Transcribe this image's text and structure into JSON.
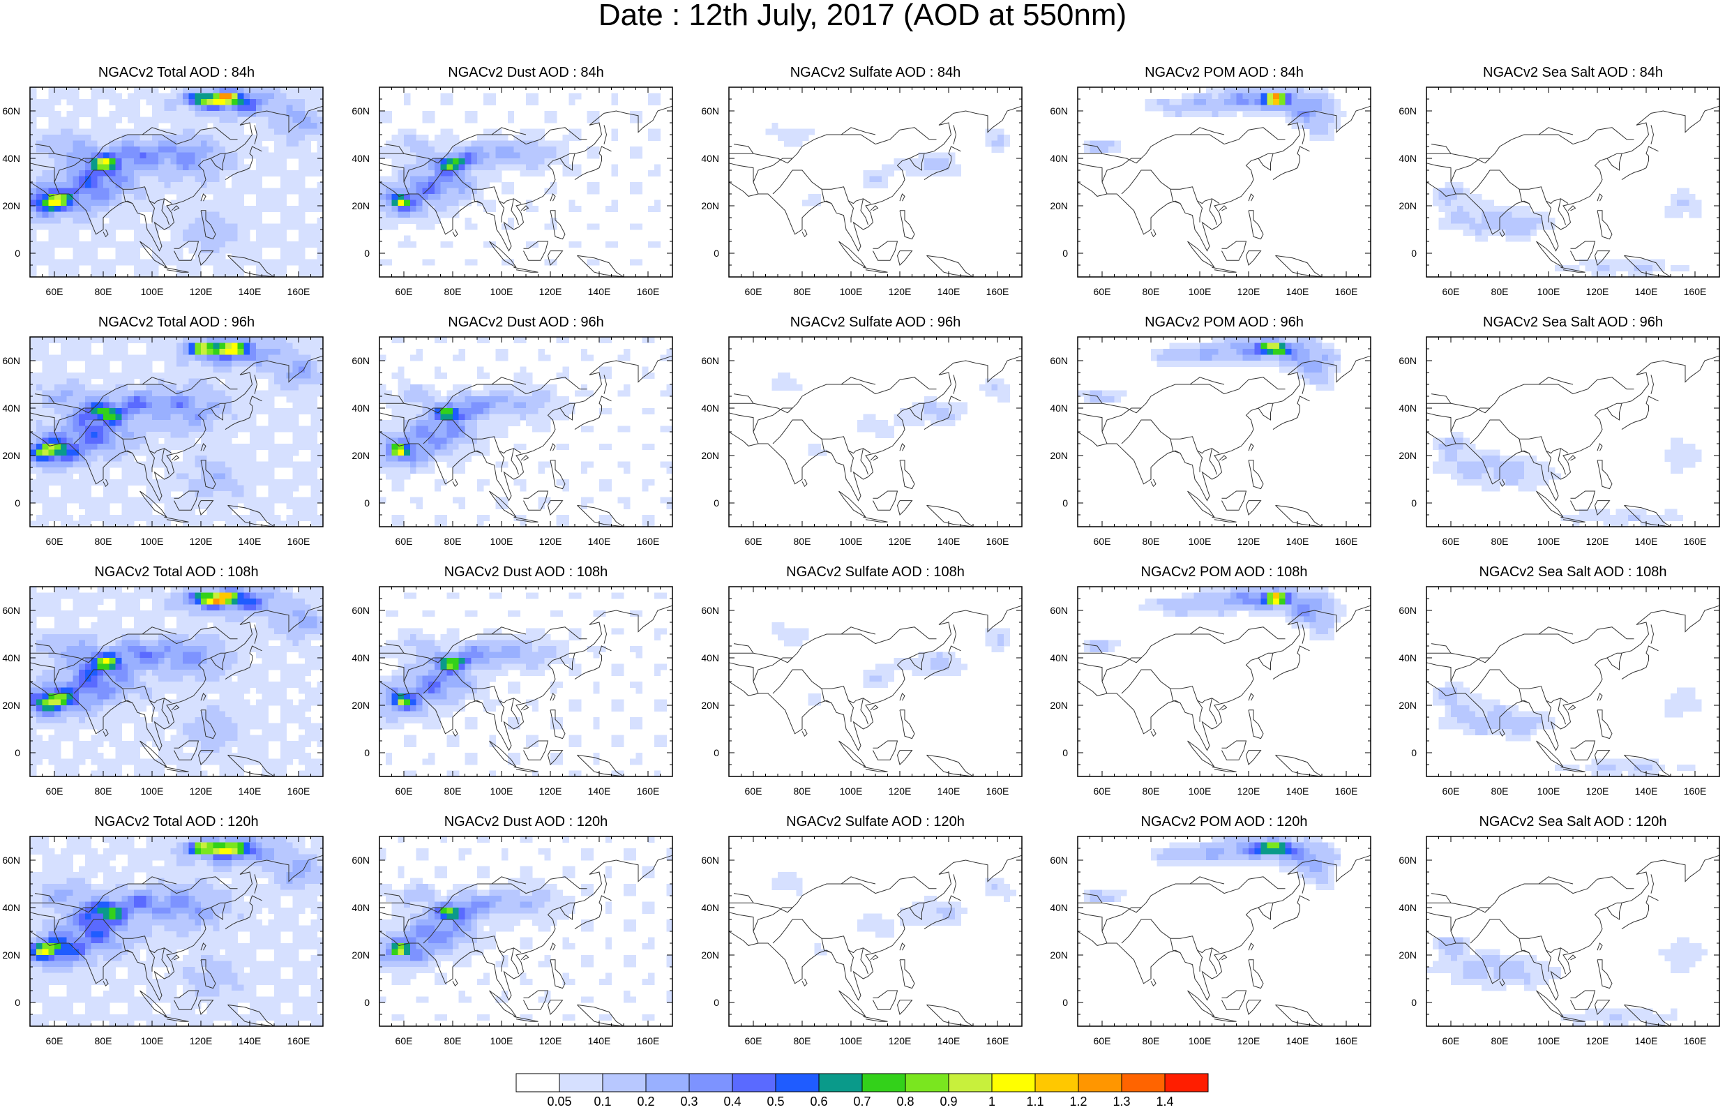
{
  "title": "Date : 12th July, 2017 (AOD at 550nm)",
  "lon_ticks": [
    "60E",
    "80E",
    "100E",
    "120E",
    "140E",
    "160E"
  ],
  "lat_ticks": [
    "60N",
    "40N",
    "20N",
    "0"
  ],
  "species": [
    "total",
    "dust",
    "sulfate",
    "pom",
    "seasalt"
  ],
  "panels": [
    {
      "title": "NGACv2 Total AOD : 84h",
      "species": "total",
      "forecast_hour": 84
    },
    {
      "title": "NGACv2 Dust AOD : 84h",
      "species": "dust",
      "forecast_hour": 84
    },
    {
      "title": "NGACv2 Sulfate AOD : 84h",
      "species": "sulfate",
      "forecast_hour": 84
    },
    {
      "title": "NGACv2 POM AOD : 84h",
      "species": "pom",
      "forecast_hour": 84
    },
    {
      "title": "NGACv2 Sea Salt AOD : 84h",
      "species": "seasalt",
      "forecast_hour": 84
    },
    {
      "title": "NGACv2 Total AOD : 96h",
      "species": "total",
      "forecast_hour": 96
    },
    {
      "title": "NGACv2 Dust AOD : 96h",
      "species": "dust",
      "forecast_hour": 96
    },
    {
      "title": "NGACv2 Sulfate AOD : 96h",
      "species": "sulfate",
      "forecast_hour": 96
    },
    {
      "title": "NGACv2 POM AOD : 96h",
      "species": "pom",
      "forecast_hour": 96
    },
    {
      "title": "NGACv2 Sea Salt AOD : 96h",
      "species": "seasalt",
      "forecast_hour": 96
    },
    {
      "title": "NGACv2 Total AOD : 108h",
      "species": "total",
      "forecast_hour": 108
    },
    {
      "title": "NGACv2 Dust AOD : 108h",
      "species": "dust",
      "forecast_hour": 108
    },
    {
      "title": "NGACv2 Sulfate AOD : 108h",
      "species": "sulfate",
      "forecast_hour": 108
    },
    {
      "title": "NGACv2 POM AOD : 108h",
      "species": "pom",
      "forecast_hour": 108
    },
    {
      "title": "NGACv2 Sea Salt AOD : 108h",
      "species": "seasalt",
      "forecast_hour": 108
    },
    {
      "title": "NGACv2 Total AOD : 120h",
      "species": "total",
      "forecast_hour": 120
    },
    {
      "title": "NGACv2 Dust AOD : 120h",
      "species": "dust",
      "forecast_hour": 120
    },
    {
      "title": "NGACv2 Sulfate AOD : 120h",
      "species": "sulfate",
      "forecast_hour": 120
    },
    {
      "title": "NGACv2 POM AOD : 120h",
      "species": "pom",
      "forecast_hour": 120
    },
    {
      "title": "NGACv2 Sea Salt  AOD : 120h",
      "species": "seasalt",
      "forecast_hour": 120
    }
  ],
  "colorbar": {
    "labels": [
      "0.05",
      "0.1",
      "0.2",
      "0.3",
      "0.4",
      "0.5",
      "0.6",
      "0.7",
      "0.8",
      "0.9",
      "1",
      "1.1",
      "1.2",
      "1.3",
      "1.4"
    ],
    "colors": [
      "#ffffff",
      "#d6e0ff",
      "#b8c8ff",
      "#99b0ff",
      "#7d93ff",
      "#5a6aff",
      "#1f5cff",
      "#0a9a8a",
      "#33d11a",
      "#7ae61f",
      "#c8f03c",
      "#ffff00",
      "#ffc800",
      "#ff9600",
      "#ff6400",
      "#ff1e00"
    ]
  }
}
